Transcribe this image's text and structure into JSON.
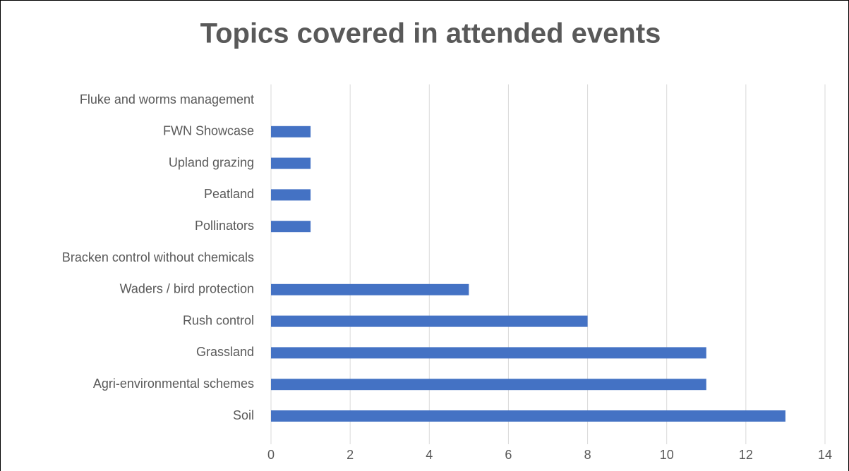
{
  "chart_data": {
    "type": "hbar",
    "title": "Topics covered in attended events",
    "categories": [
      "Fluke and worms management",
      "FWN Showcase",
      "Upland grazing",
      "Peatland",
      "Pollinators",
      "Bracken control without chemicals",
      "Waders / bird protection",
      "Rush control",
      "Grassland",
      "Agri-environmental schemes",
      "Soil"
    ],
    "values": [
      0,
      1,
      1,
      1,
      1,
      0,
      5,
      8,
      11,
      11,
      13
    ],
    "color": "#4472c4",
    "xlim": [
      0,
      14
    ],
    "xticks": [
      0,
      2,
      4,
      6,
      8,
      10,
      12,
      14
    ],
    "grid": true
  }
}
